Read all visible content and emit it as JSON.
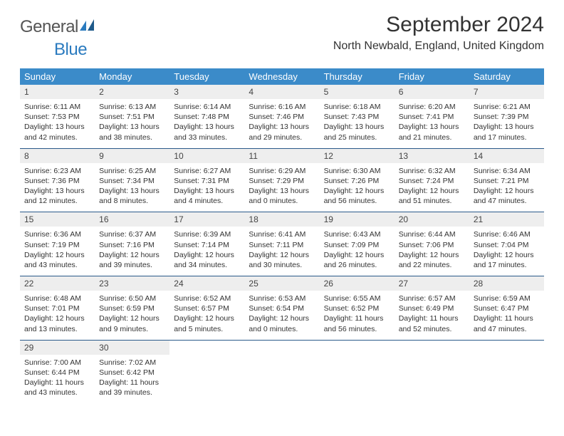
{
  "logo": {
    "part1": "General",
    "part2": "Blue"
  },
  "title": "September 2024",
  "location": "North Newbald, England, United Kingdom",
  "colors": {
    "header_bg": "#3b8bc9",
    "header_text": "#ffffff",
    "daynum_bg": "#eeeeee",
    "row_border": "#2b5a8a",
    "logo_blue": "#2b7bbf"
  },
  "fonts": {
    "title_size_pt": 22,
    "location_size_pt": 12,
    "dayhead_size_pt": 10,
    "body_size_pt": 8
  },
  "day_headers": [
    "Sunday",
    "Monday",
    "Tuesday",
    "Wednesday",
    "Thursday",
    "Friday",
    "Saturday"
  ],
  "weeks": [
    [
      {
        "n": "1",
        "sr": "Sunrise: 6:11 AM",
        "ss": "Sunset: 7:53 PM",
        "dl": "Daylight: 13 hours and 42 minutes."
      },
      {
        "n": "2",
        "sr": "Sunrise: 6:13 AM",
        "ss": "Sunset: 7:51 PM",
        "dl": "Daylight: 13 hours and 38 minutes."
      },
      {
        "n": "3",
        "sr": "Sunrise: 6:14 AM",
        "ss": "Sunset: 7:48 PM",
        "dl": "Daylight: 13 hours and 33 minutes."
      },
      {
        "n": "4",
        "sr": "Sunrise: 6:16 AM",
        "ss": "Sunset: 7:46 PM",
        "dl": "Daylight: 13 hours and 29 minutes."
      },
      {
        "n": "5",
        "sr": "Sunrise: 6:18 AM",
        "ss": "Sunset: 7:43 PM",
        "dl": "Daylight: 13 hours and 25 minutes."
      },
      {
        "n": "6",
        "sr": "Sunrise: 6:20 AM",
        "ss": "Sunset: 7:41 PM",
        "dl": "Daylight: 13 hours and 21 minutes."
      },
      {
        "n": "7",
        "sr": "Sunrise: 6:21 AM",
        "ss": "Sunset: 7:39 PM",
        "dl": "Daylight: 13 hours and 17 minutes."
      }
    ],
    [
      {
        "n": "8",
        "sr": "Sunrise: 6:23 AM",
        "ss": "Sunset: 7:36 PM",
        "dl": "Daylight: 13 hours and 12 minutes."
      },
      {
        "n": "9",
        "sr": "Sunrise: 6:25 AM",
        "ss": "Sunset: 7:34 PM",
        "dl": "Daylight: 13 hours and 8 minutes."
      },
      {
        "n": "10",
        "sr": "Sunrise: 6:27 AM",
        "ss": "Sunset: 7:31 PM",
        "dl": "Daylight: 13 hours and 4 minutes."
      },
      {
        "n": "11",
        "sr": "Sunrise: 6:29 AM",
        "ss": "Sunset: 7:29 PM",
        "dl": "Daylight: 13 hours and 0 minutes."
      },
      {
        "n": "12",
        "sr": "Sunrise: 6:30 AM",
        "ss": "Sunset: 7:26 PM",
        "dl": "Daylight: 12 hours and 56 minutes."
      },
      {
        "n": "13",
        "sr": "Sunrise: 6:32 AM",
        "ss": "Sunset: 7:24 PM",
        "dl": "Daylight: 12 hours and 51 minutes."
      },
      {
        "n": "14",
        "sr": "Sunrise: 6:34 AM",
        "ss": "Sunset: 7:21 PM",
        "dl": "Daylight: 12 hours and 47 minutes."
      }
    ],
    [
      {
        "n": "15",
        "sr": "Sunrise: 6:36 AM",
        "ss": "Sunset: 7:19 PM",
        "dl": "Daylight: 12 hours and 43 minutes."
      },
      {
        "n": "16",
        "sr": "Sunrise: 6:37 AM",
        "ss": "Sunset: 7:16 PM",
        "dl": "Daylight: 12 hours and 39 minutes."
      },
      {
        "n": "17",
        "sr": "Sunrise: 6:39 AM",
        "ss": "Sunset: 7:14 PM",
        "dl": "Daylight: 12 hours and 34 minutes."
      },
      {
        "n": "18",
        "sr": "Sunrise: 6:41 AM",
        "ss": "Sunset: 7:11 PM",
        "dl": "Daylight: 12 hours and 30 minutes."
      },
      {
        "n": "19",
        "sr": "Sunrise: 6:43 AM",
        "ss": "Sunset: 7:09 PM",
        "dl": "Daylight: 12 hours and 26 minutes."
      },
      {
        "n": "20",
        "sr": "Sunrise: 6:44 AM",
        "ss": "Sunset: 7:06 PM",
        "dl": "Daylight: 12 hours and 22 minutes."
      },
      {
        "n": "21",
        "sr": "Sunrise: 6:46 AM",
        "ss": "Sunset: 7:04 PM",
        "dl": "Daylight: 12 hours and 17 minutes."
      }
    ],
    [
      {
        "n": "22",
        "sr": "Sunrise: 6:48 AM",
        "ss": "Sunset: 7:01 PM",
        "dl": "Daylight: 12 hours and 13 minutes."
      },
      {
        "n": "23",
        "sr": "Sunrise: 6:50 AM",
        "ss": "Sunset: 6:59 PM",
        "dl": "Daylight: 12 hours and 9 minutes."
      },
      {
        "n": "24",
        "sr": "Sunrise: 6:52 AM",
        "ss": "Sunset: 6:57 PM",
        "dl": "Daylight: 12 hours and 5 minutes."
      },
      {
        "n": "25",
        "sr": "Sunrise: 6:53 AM",
        "ss": "Sunset: 6:54 PM",
        "dl": "Daylight: 12 hours and 0 minutes."
      },
      {
        "n": "26",
        "sr": "Sunrise: 6:55 AM",
        "ss": "Sunset: 6:52 PM",
        "dl": "Daylight: 11 hours and 56 minutes."
      },
      {
        "n": "27",
        "sr": "Sunrise: 6:57 AM",
        "ss": "Sunset: 6:49 PM",
        "dl": "Daylight: 11 hours and 52 minutes."
      },
      {
        "n": "28",
        "sr": "Sunrise: 6:59 AM",
        "ss": "Sunset: 6:47 PM",
        "dl": "Daylight: 11 hours and 47 minutes."
      }
    ],
    [
      {
        "n": "29",
        "sr": "Sunrise: 7:00 AM",
        "ss": "Sunset: 6:44 PM",
        "dl": "Daylight: 11 hours and 43 minutes."
      },
      {
        "n": "30",
        "sr": "Sunrise: 7:02 AM",
        "ss": "Sunset: 6:42 PM",
        "dl": "Daylight: 11 hours and 39 minutes."
      },
      null,
      null,
      null,
      null,
      null
    ]
  ]
}
